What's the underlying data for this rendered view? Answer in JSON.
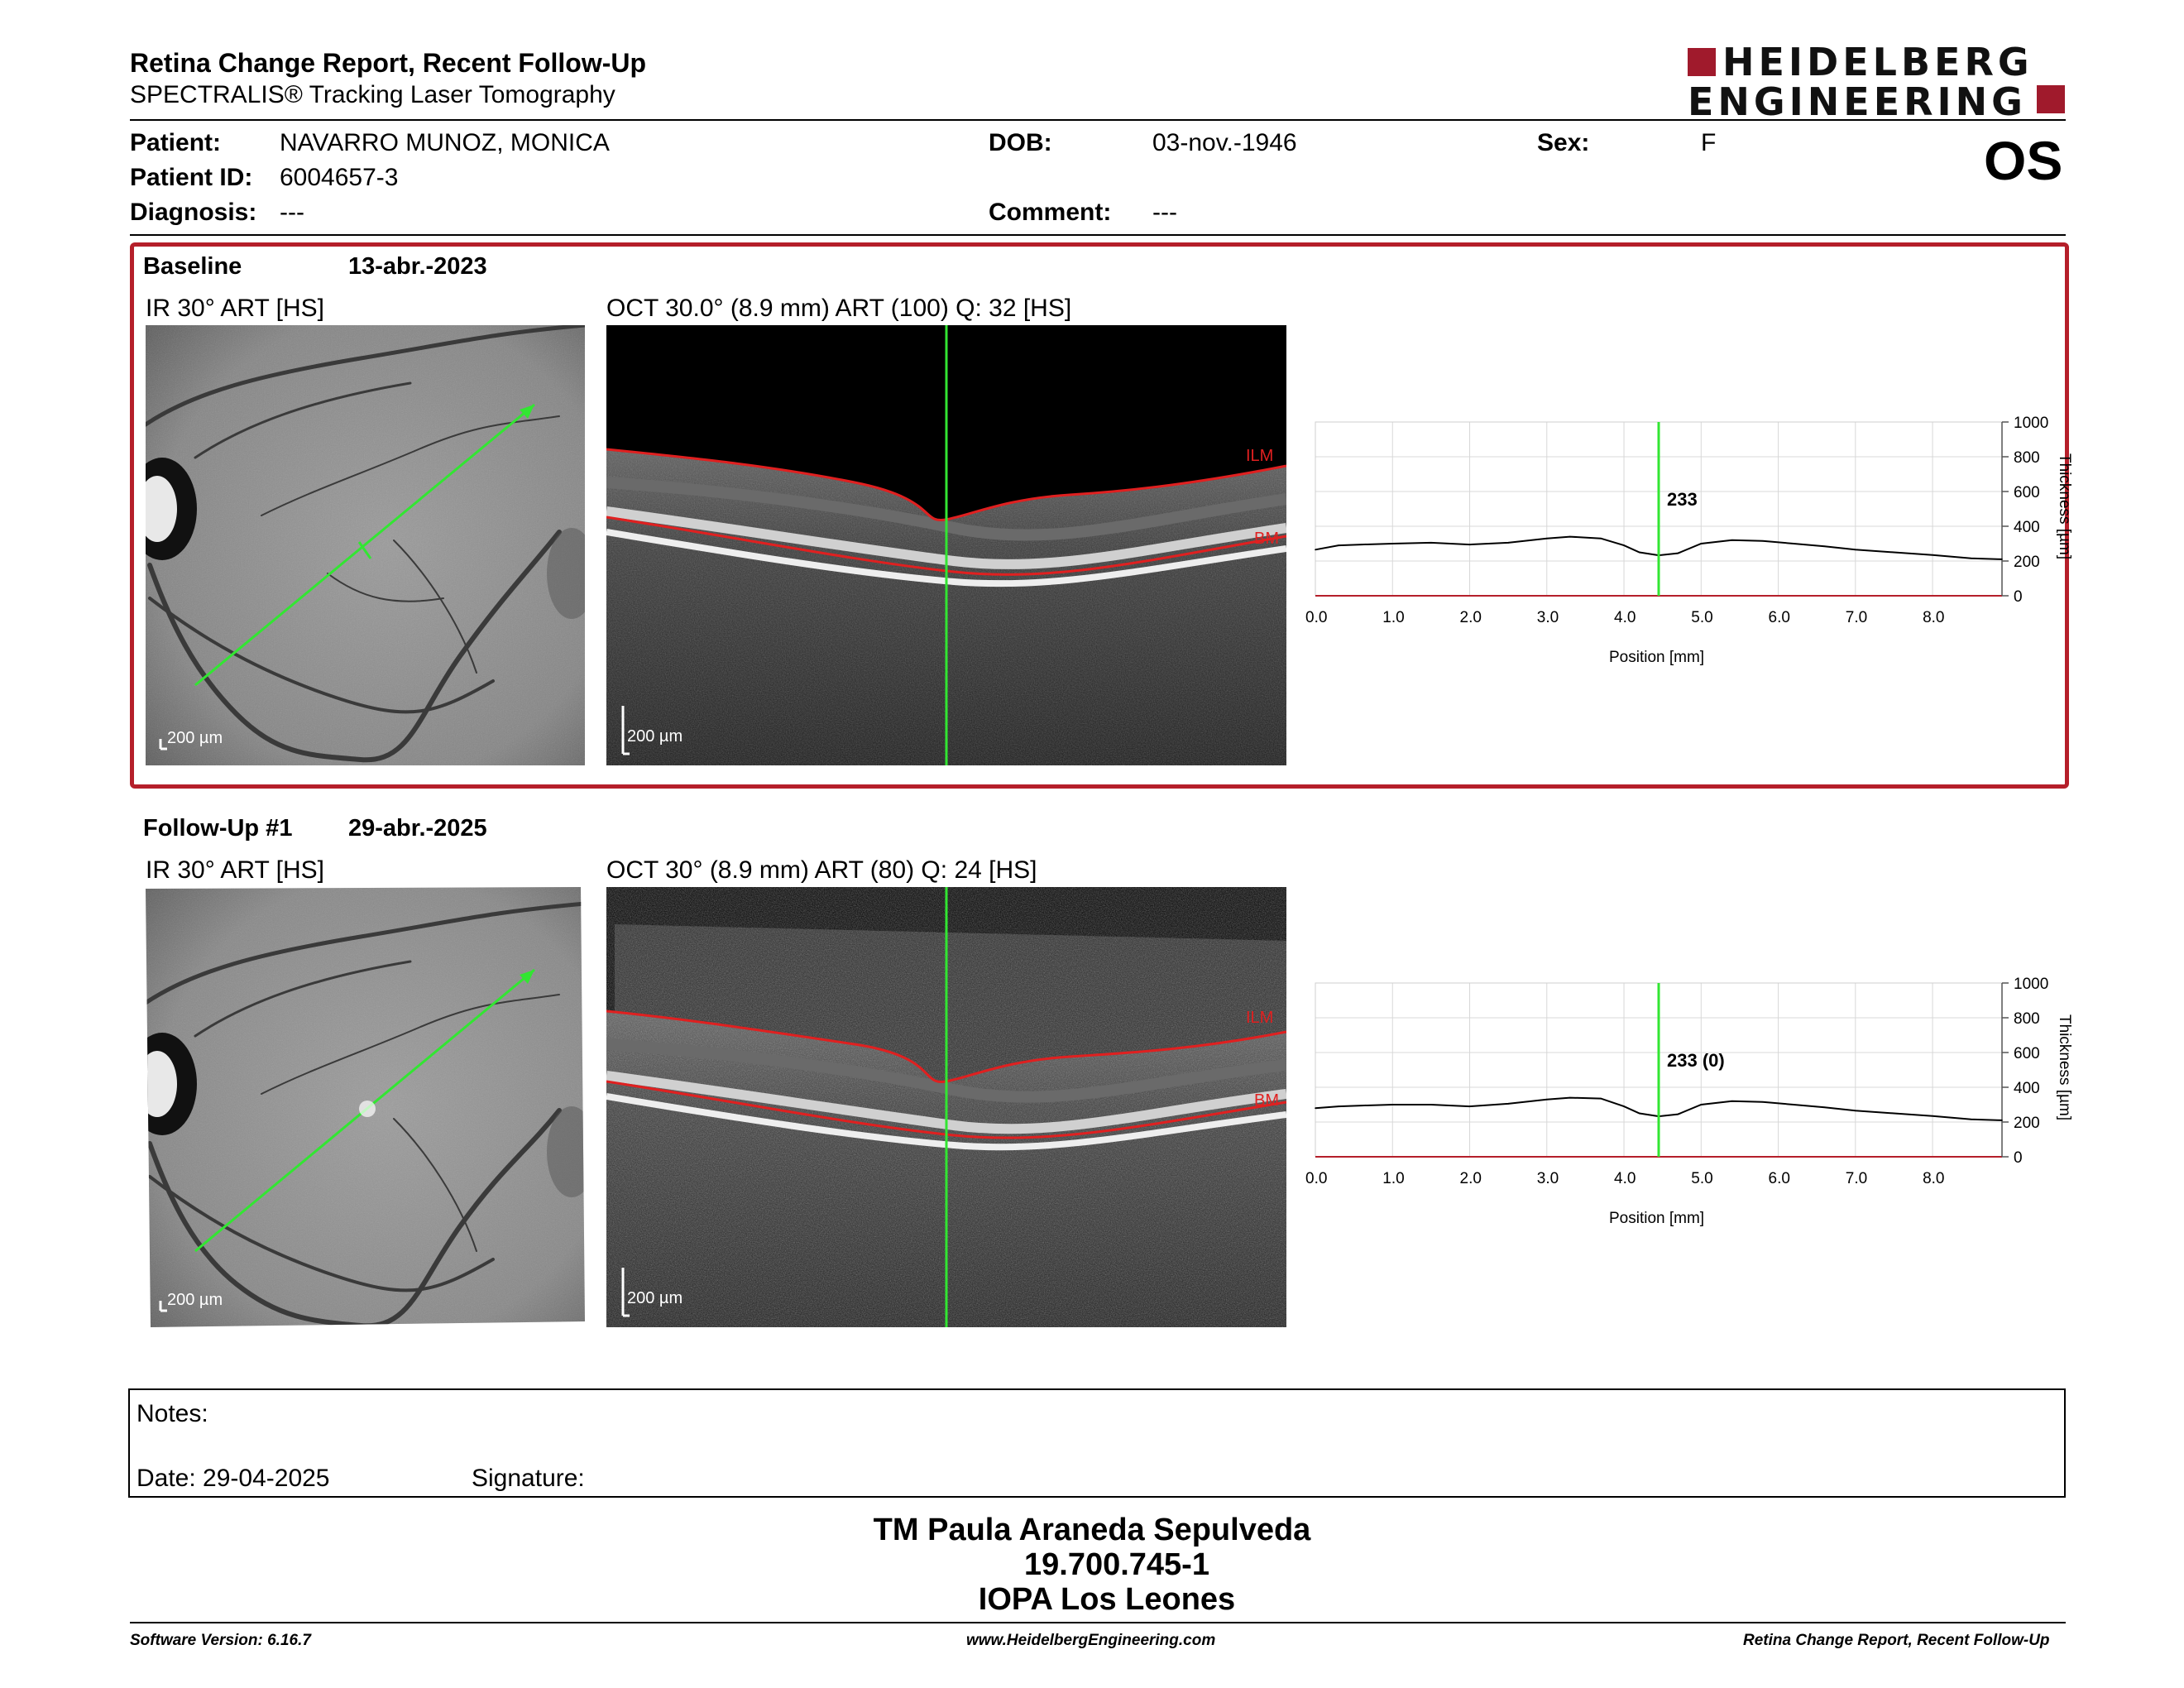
{
  "header": {
    "title": "Retina Change Report, Recent Follow-Up",
    "subtitle": "SPECTRALIS® Tracking Laser Tomography",
    "logo_line1": "HEIDELBERG",
    "logo_line2": "ENGINEERING"
  },
  "patient": {
    "patient_label": "Patient:",
    "patient_value": "NAVARRO MUNOZ, MONICA",
    "id_label": "Patient ID:",
    "id_value": "6004657-3",
    "diagnosis_label": "Diagnosis:",
    "diagnosis_value": "---",
    "dob_label": "DOB:",
    "dob_value": "03-nov.-1946",
    "comment_label": "Comment:",
    "comment_value": "---",
    "sex_label": "Sex:",
    "sex_value": "F",
    "eye": "OS"
  },
  "baseline": {
    "label": "Baseline",
    "date": "13-abr.-2023",
    "ir_label": "IR 30° ART [HS]",
    "oct_label": "OCT 30.0° (8.9 mm) ART (100) Q: 32 [HS]",
    "scale_ir": "200 µm",
    "scale_oct": "200 µm",
    "layer_top": "ILM",
    "layer_bottom": "BM",
    "cursor_value": "233"
  },
  "followup": {
    "label": "Follow-Up #1",
    "date": "29-abr.-2025",
    "ir_label": "IR 30° ART [HS]",
    "oct_label": "OCT 30° (8.9 mm) ART (80) Q: 24 [HS]",
    "scale_ir": "200 µm",
    "scale_oct": "200 µm",
    "layer_top": "ILM",
    "layer_bottom": "BM",
    "cursor_value": "233 (0)"
  },
  "chart_data": [
    {
      "type": "line",
      "xlabel": "Position [mm]",
      "ylabel": "Thickness [µm]",
      "xlim": [
        0,
        8.9
      ],
      "ylim": [
        0,
        1000
      ],
      "xticks": [
        "0.0",
        "1.0",
        "2.0",
        "3.0",
        "4.0",
        "5.0",
        "6.0",
        "7.0",
        "8.0"
      ],
      "yticks": [
        "0",
        "200",
        "400",
        "600",
        "800",
        "1000"
      ],
      "cursor_x": 4.45,
      "cursor_label": "233",
      "grid": true,
      "x": [
        0.0,
        0.3,
        0.6,
        1.0,
        1.5,
        2.0,
        2.5,
        3.0,
        3.3,
        3.7,
        4.0,
        4.2,
        4.45,
        4.7,
        5.0,
        5.4,
        5.8,
        6.2,
        6.6,
        7.0,
        7.5,
        8.0,
        8.5,
        8.9
      ],
      "y": [
        265,
        290,
        295,
        300,
        305,
        295,
        305,
        330,
        340,
        330,
        290,
        250,
        233,
        245,
        300,
        320,
        315,
        300,
        285,
        265,
        250,
        235,
        215,
        210
      ]
    },
    {
      "type": "line",
      "xlabel": "Position [mm]",
      "ylabel": "Thickness [µm]",
      "xlim": [
        0,
        8.9
      ],
      "ylim": [
        0,
        1000
      ],
      "xticks": [
        "0.0",
        "1.0",
        "2.0",
        "3.0",
        "4.0",
        "5.0",
        "6.0",
        "7.0",
        "8.0"
      ],
      "yticks": [
        "0",
        "200",
        "400",
        "600",
        "800",
        "1000"
      ],
      "cursor_x": 4.45,
      "cursor_label": "233 (0)",
      "grid": true,
      "x": [
        0.0,
        0.3,
        0.6,
        1.0,
        1.5,
        2.0,
        2.5,
        3.0,
        3.3,
        3.7,
        4.0,
        4.2,
        4.45,
        4.7,
        5.0,
        5.4,
        5.8,
        6.2,
        6.6,
        7.0,
        7.5,
        8.0,
        8.5,
        8.9
      ],
      "y": [
        280,
        290,
        295,
        300,
        300,
        290,
        305,
        330,
        340,
        335,
        290,
        250,
        233,
        245,
        300,
        320,
        315,
        300,
        285,
        265,
        250,
        235,
        215,
        210
      ]
    }
  ],
  "notes": {
    "notes_label": "Notes:",
    "date_label": "Date: 29-04-2025",
    "signature_label": "Signature:"
  },
  "signature_block": {
    "name": "TM Paula Araneda Sepulveda",
    "rut": "19.700.745-1",
    "institution": "IOPA Los Leones"
  },
  "footer": {
    "software": "Software Version: 6.16.7",
    "website": "www.HeidelbergEngineering.com",
    "report": "Retina Change Report, Recent Follow-Up"
  },
  "colors": {
    "accent_red": "#b51f2a",
    "scan_green": "#32e632",
    "layer_red": "#e02020"
  }
}
